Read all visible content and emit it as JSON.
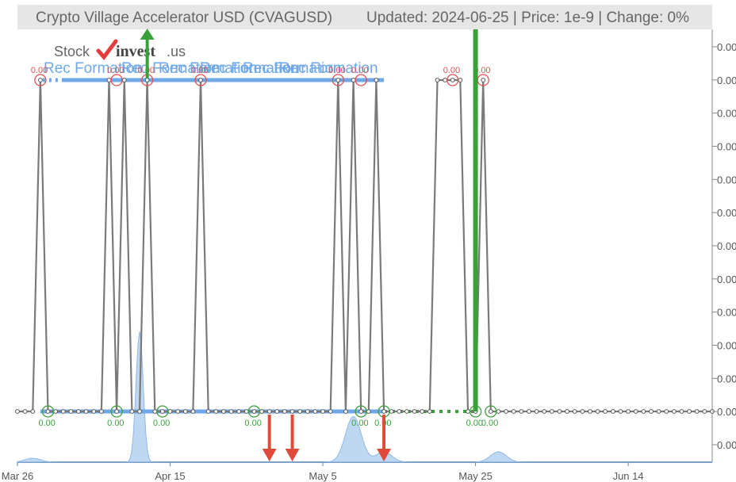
{
  "header": {
    "title": "Crypto Village Accelerator USD (CVAGUSD)",
    "meta": "Updated: 2024-06-25 | Price: 1e-9 | Change: 0%"
  },
  "logo": {
    "part1": "Stock",
    "part2": "invest",
    "part3": ".us"
  },
  "colors": {
    "price_line": "#7a7a7a",
    "support": "#6fa8e8",
    "buy_signal": "#3aa03a",
    "sell_signal": "#e04a3a",
    "volume_fill": "#a9cbee",
    "grid_tick": "#888888",
    "title_bar": "#e6e6e6"
  },
  "chart_data": {
    "type": "line",
    "title": "Crypto Village Accelerator USD (CVAGUSD)",
    "x_tick_labels": [
      "Mar 26",
      "Apr 15",
      "May 5",
      "May 25",
      "Jun 14"
    ],
    "x_tick_dates": [
      "2024-03-26",
      "2024-04-15",
      "2024-05-05",
      "2024-05-25",
      "2024-06-14"
    ],
    "x_range": [
      "2024-03-26",
      "2024-06-25"
    ],
    "y_tick_labels": [
      "0.00",
      "0.00",
      "0.00",
      "0.00",
      "0.00",
      "0.00",
      "0.00",
      "0.00",
      "0.00",
      "0.00",
      "0.00",
      "0.00",
      "0.00"
    ],
    "y_scale_note": "values effectively 0 (price 1e-9); two levels: low and high",
    "price_series": {
      "name": "",
      "low_value": 0,
      "high_value": 1,
      "segments_high_dates": [
        "2024-03-29",
        "2024-04-07",
        "2024-04-09",
        "2024-04-12",
        "2024-04-19",
        "2024-05-07",
        "2024-05-09",
        "2024-05-12",
        "2024-05-20",
        "2024-05-21",
        "2024-05-22",
        "2024-05-23",
        "2024-05-26"
      ]
    },
    "resistance": {
      "label": "Rec Formation",
      "level": 1,
      "start": "2024-03-29",
      "end": "2024-05-13",
      "repeated_labels": [
        "Rec Formation",
        "Rec Formation",
        "Rec Formation",
        "Rec Formation",
        "Rec Formation",
        "Rec Formation"
      ]
    },
    "support": {
      "level": 0,
      "start": "2024-03-29",
      "end": "2024-05-13"
    },
    "high_markers": {
      "label": "0.00",
      "dates": [
        "2024-03-29",
        "2024-04-08",
        "2024-04-12",
        "2024-04-19",
        "2024-05-07",
        "2024-05-10",
        "2024-05-22",
        "2024-05-26"
      ]
    },
    "low_markers": {
      "label": "0.00",
      "dates": [
        "2024-03-30",
        "2024-04-08",
        "2024-04-14",
        "2024-04-26",
        "2024-05-10",
        "2024-05-13",
        "2024-05-25",
        "2024-05-27"
      ]
    },
    "buy_signals": [
      "2024-04-12",
      "2024-05-25"
    ],
    "sell_signals": [
      "2024-04-28",
      "2024-05-01",
      "2024-05-13"
    ],
    "volume": {
      "peaks": [
        {
          "date": "2024-04-11",
          "value": 1.0
        },
        {
          "date": "2024-05-09",
          "value": 0.35
        },
        {
          "date": "2024-05-13",
          "value": 0.08
        },
        {
          "date": "2024-05-28",
          "value": 0.08
        },
        {
          "date": "2024-03-28",
          "value": 0.03
        }
      ]
    },
    "grid": false,
    "legend": "none"
  }
}
